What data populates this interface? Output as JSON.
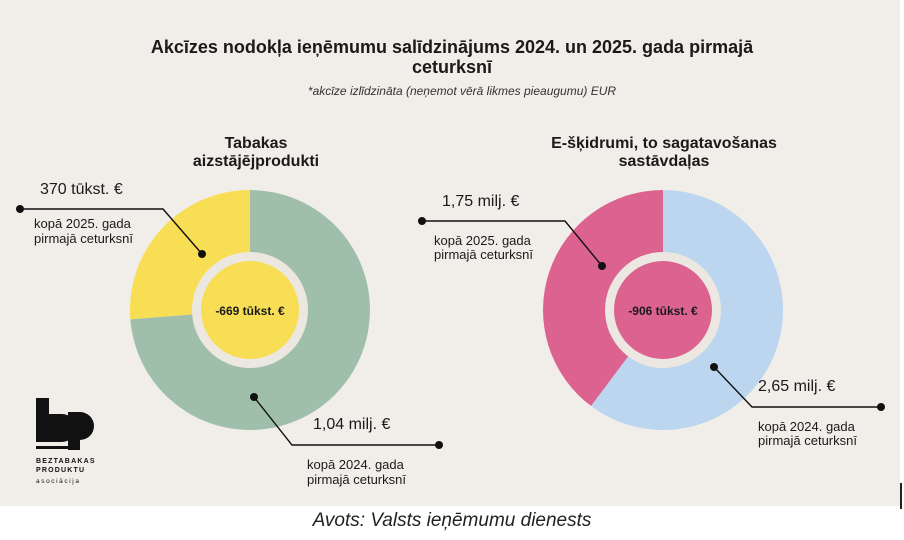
{
  "header": {
    "title_line1": "Akcīzes nodokļa ieņēmumu salīdzinājums 2024. un 2025. gada pirmajā",
    "title_line2": "ceturksnī",
    "subtitle": "*akcīze izlīdzināta (neņemot vērā likmes pieaugumu) EUR"
  },
  "source": "Avots: Valsts ieņēmumu dienests",
  "logo": {
    "name_line1": "BEZTABAKAS",
    "name_line2": "PRODUKTU",
    "name_line3": "asociācija"
  },
  "colors": {
    "background": "#f1eee9",
    "inner_ring": "#ece8e1",
    "text": "#1a1a1a"
  },
  "chart_data": [
    {
      "type": "pie",
      "style": "donut",
      "title_line1": "Tabakas",
      "title_line2": "aizstājējprodukti",
      "center_label": "-669 tūkst. €",
      "center_color": "#f8de54",
      "slices": [
        {
          "value_label": "370 tūkst. €",
          "value": 370000,
          "label_line1": "kopā 2025. gada",
          "label_line2": "pirmajā ceturksnī",
          "color": "#f8de54"
        },
        {
          "value_label": "1,04 milj. €",
          "value": 1040000,
          "label_line1": "kopā 2024. gada",
          "label_line2": "pirmajā ceturksnī",
          "color": "#9fbfab"
        }
      ]
    },
    {
      "type": "pie",
      "style": "donut",
      "title_line1": "E-šķidrumi, to sagatavošanas",
      "title_line2": "sastāvdaļas",
      "center_label": "-906 tūkst. €",
      "center_color": "#dc6390",
      "slices": [
        {
          "value_label": "1,75 milj. €",
          "value": 1750000,
          "label_line1": "kopā 2025. gada",
          "label_line2": "pirmajā ceturksnī",
          "color": "#dc6390"
        },
        {
          "value_label": "2,65 milj. €",
          "value": 2650000,
          "label_line1": "kopā 2024. gada",
          "label_line2": "pirmajā ceturksnī",
          "color": "#bdd6f0"
        }
      ]
    }
  ]
}
